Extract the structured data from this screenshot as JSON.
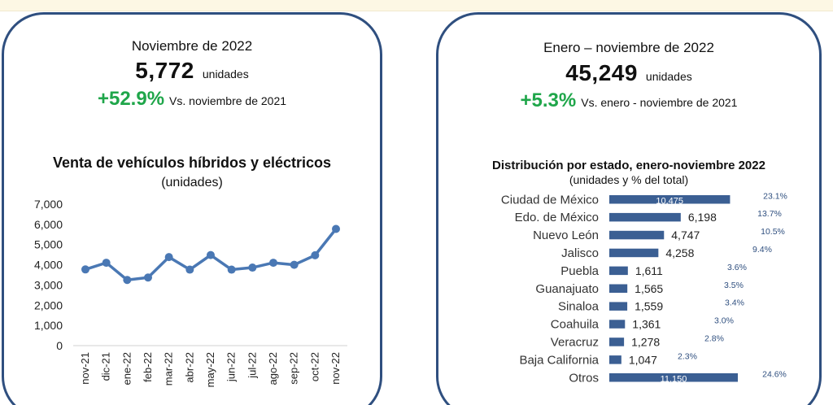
{
  "left_card": {
    "period": "Noviembre de 2022",
    "total": "5,772",
    "units": "unidades",
    "growth": "+52.9%",
    "comparison": "Vs. noviembre de 2021"
  },
  "right_card": {
    "period": "Enero – noviembre de 2022",
    "total": "45,249",
    "units": "unidades",
    "growth": "+5.3%",
    "comparison": "Vs. enero - noviembre de 2021"
  },
  "colors": {
    "card_border": "#2f4f7f",
    "line": "#4a78b4",
    "bar": "#3b5f93",
    "growth_green": "#1fa64a",
    "pct_text": "#2f4f7f"
  },
  "chart_data": [
    {
      "type": "line",
      "title": "Venta de vehículos híbridos y eléctricos",
      "subtitle": "(unidades)",
      "categories": [
        "nov-21",
        "dic-21",
        "ene-22",
        "feb-22",
        "mar-22",
        "abr-22",
        "may-22",
        "jun-22",
        "jul-22",
        "ago-22",
        "sep-22",
        "oct-22",
        "nov-22"
      ],
      "values": [
        3770,
        4100,
        3250,
        3370,
        4380,
        3760,
        4480,
        3760,
        3860,
        4100,
        4000,
        4470,
        5772
      ],
      "ylim": [
        0,
        7000
      ],
      "yticks": [
        "0",
        "1,000",
        "2,000",
        "3,000",
        "4,000",
        "5,000",
        "6,000",
        "7,000"
      ],
      "grid": false,
      "legend": "none"
    },
    {
      "type": "bar",
      "orientation": "horizontal",
      "title": "Distribución por estado, enero-noviembre 2022",
      "subtitle": "(unidades y % del total)",
      "categories": [
        "Ciudad de México",
        "Edo. de México",
        "Nuevo León",
        "Jalisco",
        "Puebla",
        "Guanajuato",
        "Sinaloa",
        "Coahuila",
        "Veracruz",
        "Baja California",
        "Otros"
      ],
      "values": [
        10475,
        6198,
        4747,
        4258,
        1611,
        1565,
        1559,
        1361,
        1278,
        1047,
        11150
      ],
      "value_labels": [
        "10,475",
        "6,198",
        "4,747",
        "4,258",
        "1,611",
        "1,565",
        "1,559",
        "1,361",
        "1,278",
        "1,047",
        "11,150"
      ],
      "percent_labels": [
        "23.1%",
        "13.7%",
        "10.5%",
        "9.4%",
        "3.6%",
        "3.5%",
        "3.4%",
        "3.0%",
        "2.8%",
        "2.3%",
        "24.6%"
      ],
      "grid": false,
      "legend": "none"
    }
  ]
}
